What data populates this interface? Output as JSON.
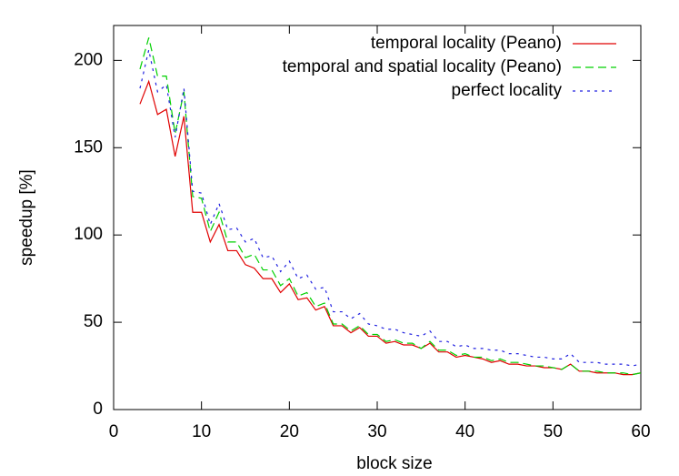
{
  "chart_data": {
    "type": "line",
    "xlabel": "block size",
    "ylabel": "speedup [%]",
    "x": [
      3,
      4,
      5,
      6,
      7,
      8,
      9,
      10,
      11,
      12,
      13,
      14,
      15,
      16,
      17,
      18,
      19,
      20,
      21,
      22,
      23,
      24,
      25,
      26,
      27,
      28,
      29,
      30,
      31,
      32,
      33,
      34,
      35,
      36,
      37,
      38,
      39,
      40,
      41,
      42,
      43,
      44,
      45,
      46,
      47,
      48,
      49,
      50,
      51,
      52,
      53,
      54,
      55,
      56,
      57,
      58,
      59,
      60
    ],
    "series": [
      {
        "name": "temporal locality (Peano)",
        "color": "#e00000",
        "dash": "solid",
        "values": [
          175,
          188,
          169,
          172,
          145,
          168,
          113,
          113,
          96,
          106,
          91,
          91,
          83,
          81,
          75,
          75,
          67,
          72,
          63,
          64,
          57,
          59,
          48,
          48,
          44,
          47,
          42,
          42,
          38,
          39,
          37,
          37,
          35,
          38,
          33,
          33,
          30,
          31,
          30,
          29,
          27,
          28,
          26,
          26,
          25,
          25,
          24,
          24,
          23,
          26,
          22,
          22,
          21,
          21,
          21,
          20,
          20,
          21
        ]
      },
      {
        "name": "temporal and spatial locality (Peano)",
        "color": "#00d000",
        "dash": "dashed",
        "values": [
          195,
          213,
          191,
          191,
          158,
          182,
          122,
          121,
          102,
          113,
          96,
          96,
          87,
          89,
          80,
          80,
          71,
          75,
          65,
          67,
          59,
          61,
          49,
          49,
          45,
          48,
          43,
          43,
          39,
          40,
          38,
          38,
          35,
          39,
          34,
          34,
          31,
          32,
          30,
          30,
          28,
          29,
          27,
          27,
          26,
          25,
          25,
          24,
          23,
          26,
          22,
          22,
          22,
          21,
          21,
          21,
          20,
          21
        ]
      },
      {
        "name": "perfect locality",
        "color": "#2020e0",
        "dash": "dotted",
        "values": [
          184,
          206,
          182,
          186,
          156,
          184,
          125,
          124,
          106,
          118,
          103,
          104,
          96,
          98,
          87,
          88,
          79,
          85,
          75,
          77,
          69,
          70,
          56,
          56,
          52,
          55,
          49,
          48,
          46,
          46,
          44,
          43,
          42,
          45,
          39,
          39,
          36,
          37,
          35,
          35,
          34,
          34,
          32,
          32,
          31,
          30,
          30,
          29,
          29,
          32,
          27,
          27,
          27,
          26,
          26,
          26,
          25,
          26
        ]
      }
    ],
    "xlim": [
      0,
      60
    ],
    "xticks": [
      0,
      10,
      20,
      30,
      40,
      50,
      60
    ],
    "ylim": [
      0,
      220
    ],
    "yticks": [
      0,
      50,
      100,
      150,
      200
    ],
    "grid": false,
    "legend": "top-right"
  }
}
